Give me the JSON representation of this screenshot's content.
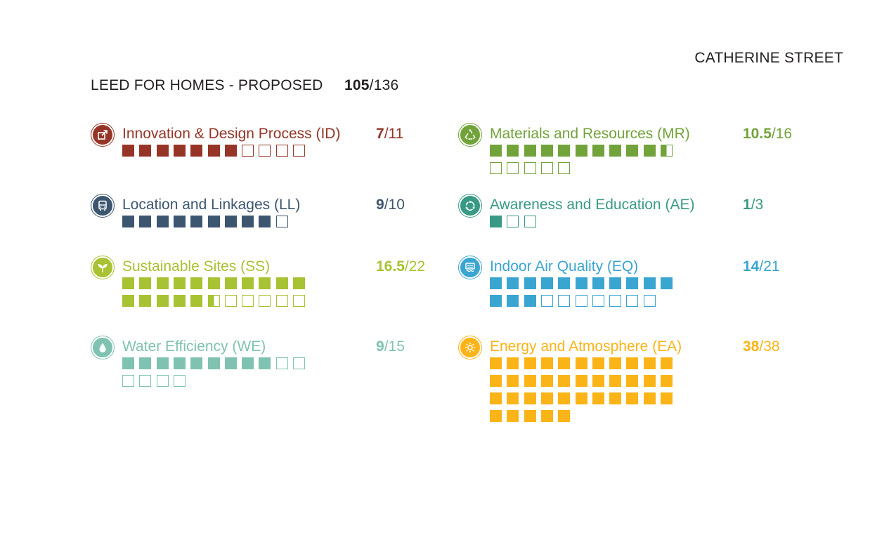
{
  "project": {
    "street": "CATHERINE STREET"
  },
  "header": {
    "title": "LEED FOR HOMES - PROPOSED",
    "earned": "105",
    "sep": "/",
    "possible": "136"
  },
  "chart_data": {
    "type": "table",
    "title": "LEED FOR HOMES - PROPOSED",
    "total": {
      "earned": 105,
      "possible": 136
    },
    "categories": [
      {
        "key": "id",
        "name": "Innovation & Design Process (ID)",
        "earned": "7",
        "possible": "11",
        "earned_value": 7,
        "possible_value": 11,
        "color": "#963527",
        "icon": "external-link-icon"
      },
      {
        "key": "ll",
        "name": "Location and Linkages (LL)",
        "earned": "9",
        "possible": "10",
        "earned_value": 9,
        "possible_value": 10,
        "color": "#3c5670",
        "icon": "bus-icon"
      },
      {
        "key": "ss",
        "name": "Sustainable Sites (SS)",
        "earned": "16.5",
        "possible": "22",
        "earned_value": 16.5,
        "possible_value": 22,
        "color": "#a7c232",
        "icon": "sprout-icon"
      },
      {
        "key": "we",
        "name": "Water Efficiency (WE)",
        "earned": "9",
        "possible": "15",
        "earned_value": 9,
        "possible_value": 15,
        "color": "#7fc2b1",
        "icon": "water-drop-icon"
      },
      {
        "key": "mr",
        "name": "Materials and Resources (MR)",
        "earned": "10.5",
        "possible": "16",
        "earned_value": 10.5,
        "possible_value": 16,
        "color": "#72a33a",
        "icon": "recycle-icon"
      },
      {
        "key": "ae",
        "name": "Awareness and Education (AE)",
        "earned": "1",
        "possible": "3",
        "earned_value": 1,
        "possible_value": 3,
        "color": "#389a85",
        "icon": "cycle-icon"
      },
      {
        "key": "eq",
        "name": "Indoor Air Quality (EQ)",
        "earned": "14",
        "possible": "21",
        "earned_value": 14,
        "possible_value": 21,
        "color": "#3aa5d0",
        "icon": "air-vent-icon"
      },
      {
        "key": "ea",
        "name": "Energy and Atmosphere (EA)",
        "earned": "38",
        "possible": "38",
        "earned_value": 38,
        "possible_value": 38,
        "color": "#fbb417",
        "icon": "sun-icon"
      }
    ]
  }
}
